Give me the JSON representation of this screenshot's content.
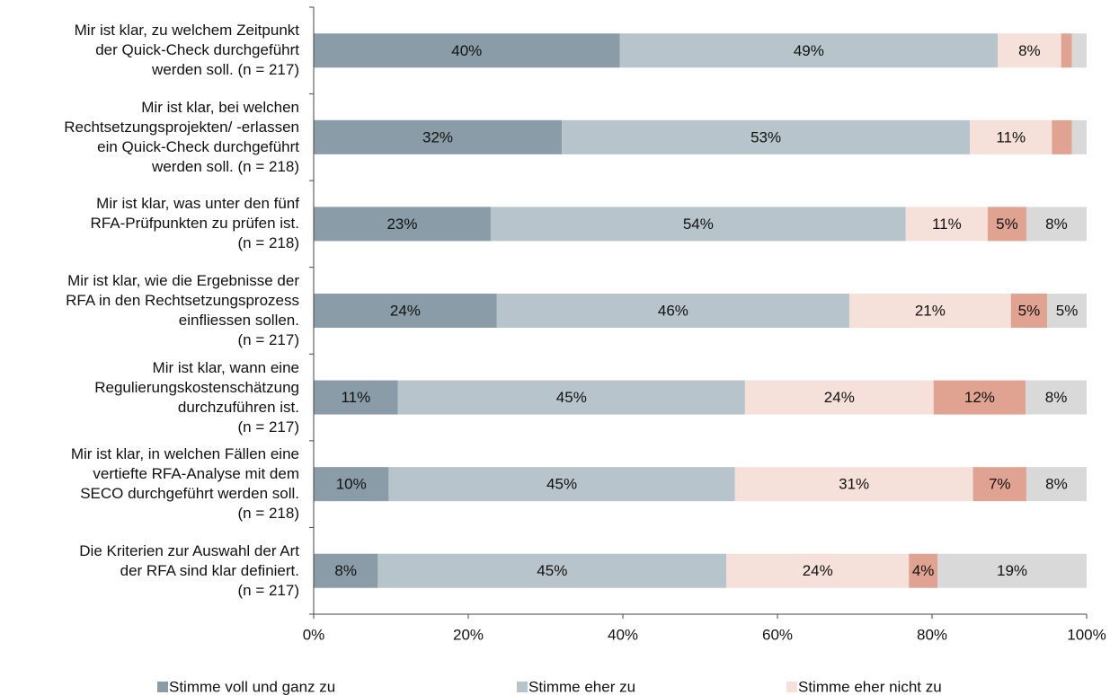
{
  "chart_data": {
    "type": "stacked_bar_horizontal",
    "categories": [
      "Mir ist klar, zu welchem Zeitpunkt\nder Quick-Check durchgeführt\nwerden soll. (n = 217)",
      "Mir ist klar, bei welchen\nRechtsetzungsprojekten/ -erlassen\nein Quick-Check durchgeführt\nwerden soll. (n = 218)",
      "Mir ist klar, was unter den fünf\nRFA-Prüfpunkten zu prüfen ist.\n(n = 218)",
      "Mir ist klar, wie die Ergebnisse der\nRFA in den Rechtsetzungsprozess\neinfliessen sollen.\n(n = 217)",
      "Mir ist klar, wann eine\nRegulierungskostenschätzung\ndurchzuführen ist.\n(n = 217)",
      "Mir ist klar, in welchen Fällen eine\nvertiefte RFA-Analyse mit dem\nSECO durchgeführt werden soll.\n(n = 218)",
      "Die Kriterien zur Auswahl der Art\nder RFA sind klar definiert.\n(n = 217)"
    ],
    "series": [
      {
        "name": "Stimme voll und ganz zu",
        "color": "#8a9ca8",
        "values": [
          39.6,
          32.1,
          22.9,
          23.7,
          10.9,
          9.7,
          8.3
        ],
        "value_labels": [
          "40%",
          "32%",
          "23%",
          "24%",
          "11%",
          "10%",
          "8%"
        ]
      },
      {
        "name": "Stimme eher zu",
        "color": "#b8c4cb",
        "values": [
          48.9,
          52.8,
          53.7,
          45.6,
          44.9,
          44.8,
          45.1
        ],
        "value_labels": [
          "49%",
          "53%",
          "54%",
          "46%",
          "45%",
          "45%",
          "45%"
        ]
      },
      {
        "name": "Stimme eher nicht zu",
        "color": "#f5e0da",
        "values": [
          8.2,
          10.6,
          10.6,
          20.9,
          24.4,
          30.8,
          23.6
        ],
        "value_labels": [
          "8%",
          "11%",
          "11%",
          "21%",
          "24%",
          "31%",
          "24%"
        ]
      },
      {
        "color": "#e0a392",
        "values": [
          1.4,
          2.6,
          5.0,
          4.7,
          11.9,
          6.9,
          3.7
        ],
        "value_labels": [
          null,
          null,
          "5%",
          "5%",
          "12%",
          "7%",
          "4%"
        ]
      },
      {
        "color": "#d9d9d9",
        "values": [
          1.9,
          1.9,
          7.8,
          5.1,
          7.9,
          7.8,
          19.3
        ],
        "value_labels": [
          null,
          null,
          "8%",
          "5%",
          "8%",
          "8%",
          "19%"
        ]
      }
    ],
    "xlim": [
      0,
      100
    ],
    "xticks": [
      {
        "value": 0,
        "label": "0%"
      },
      {
        "value": 20,
        "label": "20%"
      },
      {
        "value": 40,
        "label": "40%"
      },
      {
        "value": 60,
        "label": "60%"
      },
      {
        "value": 80,
        "label": "80%"
      },
      {
        "value": 100,
        "label": "100%"
      }
    ]
  }
}
